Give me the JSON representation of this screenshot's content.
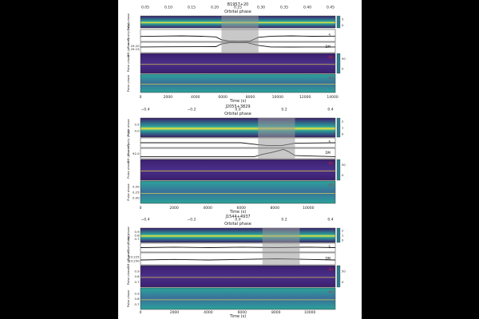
{
  "colors": {
    "background": "#000000",
    "paper": "#ffffff",
    "eclipse_shade": "#9a9a9a",
    "flux_line": "#111111",
    "s_line": "#cc2222",
    "heat_low": "#3b1f6e",
    "heat_mid": "#2e7f8f",
    "heat_high": "#f2e43a",
    "teal": "#2aa39a"
  },
  "chart_data": [
    {
      "type": "heatmap",
      "title": "B1957+20",
      "top_axis_label": "Orbital phase",
      "top_ticks": [
        "0.05",
        "0.10",
        "0.15",
        "0.20",
        "0.25",
        "0.30",
        "0.35",
        "0.40",
        "0.45"
      ],
      "x_ticks": [
        "0",
        "2000",
        "4000",
        "6000",
        "8000",
        "10000",
        "12000",
        "14000"
      ],
      "xlabel": "Time (s)",
      "xlim": [
        0,
        14200
      ],
      "eclipse": [
        5900,
        8600
      ],
      "panels": [
        {
          "name": "pulse-profile",
          "ylabel": "Pulse phase",
          "cbar": [
            "5",
            "0"
          ]
        },
        {
          "name": "flux",
          "ylabel": "Flux density (mJy)",
          "series": [
            {
              "x": [
                0,
                1500,
                3000,
                4500,
                5500,
                5900,
                6400,
                7200,
                8000,
                8600,
                9500,
                11000,
                12500,
                14200
              ],
              "y": [
                0.42,
                0.45,
                0.47,
                0.43,
                0.38,
                0.15,
                0.05,
                0.02,
                0.05,
                0.35,
                0.44,
                0.47,
                0.43,
                0.45
              ]
            }
          ],
          "marker": "S"
        },
        {
          "name": "dm",
          "ylabel": "DM (pc cm⁻³)",
          "yticks": [
            "29.20",
            "29.15"
          ],
          "series": [
            {
              "x": [
                0,
                2000,
                4000,
                5500,
                5900,
                6500,
                7800,
                8600,
                9500,
                11000,
                14200
              ],
              "y": [
                0.55,
                0.56,
                0.57,
                0.58,
                0.85,
                0.95,
                0.95,
                0.7,
                0.55,
                0.54,
                0.55
              ]
            }
          ],
          "marker": "DM"
        },
        {
          "name": "pulse-1",
          "ylabel": "Pulse phase",
          "cbar": [
            "50",
            "0"
          ],
          "tag": "(b)"
        },
        {
          "name": "pulse-2",
          "ylabel": "Pulse phase",
          "tag": "(c)"
        }
      ]
    },
    {
      "type": "heatmap",
      "title": "J2055+3829",
      "top_axis_label": "Orbital phase",
      "top_ticks": [
        "−0.4",
        "−0.2",
        "0.0",
        "0.2",
        "0.4"
      ],
      "x_ticks": [
        "0",
        "2000",
        "4000",
        "6000",
        "8000",
        "10000"
      ],
      "xlabel": "Time (s)",
      "xlim": [
        0,
        11600
      ],
      "eclipse": [
        7000,
        9200
      ],
      "panels": [
        {
          "name": "pulse-profile",
          "ylabel": "Pulse phase",
          "yticks": [
            "0.5",
            "0.0"
          ],
          "cbar": [
            "2",
            "1",
            "0"
          ]
        },
        {
          "name": "flux",
          "ylabel": "Flux density (mJy)",
          "series": [
            {
              "x": [
                0,
                3000,
                6000,
                7000,
                7600,
                8400,
                9200,
                11600
              ],
              "y": [
                0.5,
                0.5,
                0.5,
                0.3,
                0.2,
                0.2,
                0.45,
                0.5
              ]
            }
          ],
          "marker": "S"
        },
        {
          "name": "dm",
          "ylabel": "DM (pc cm⁻³)",
          "yticks": [
            "92.0"
          ],
          "series": [
            {
              "x": [
                0,
                4000,
                6800,
                7200,
                7800,
                8300,
                8500,
                8800,
                9200,
                11600
              ],
              "y": [
                0.2,
                0.2,
                0.2,
                0.4,
                0.6,
                0.8,
                0.9,
                0.7,
                0.3,
                0.2
              ]
            }
          ],
          "marker": "DM"
        },
        {
          "name": "pulse-1",
          "ylabel": "Pulse phase",
          "cbar": [
            "50",
            "0"
          ],
          "tag": "(b)"
        },
        {
          "name": "pulse-2",
          "ylabel": "Pulse phase",
          "yticks": [
            "0.50",
            "0.25",
            "0.00"
          ],
          "tag": "(c)"
        }
      ]
    },
    {
      "type": "heatmap",
      "title": "J1544+4937",
      "top_axis_label": "Orbital phase",
      "top_ticks": [
        "−0.4",
        "−0.2",
        "0.0",
        "0.2",
        "0.4"
      ],
      "x_ticks": [
        "0",
        "2000",
        "4000",
        "6000",
        "8000",
        "10000"
      ],
      "xlabel": "Time (s)",
      "xlim": [
        0,
        11500
      ],
      "eclipse": [
        7200,
        9400
      ],
      "panels": [
        {
          "name": "pulse-profile",
          "ylabel": "Pulse phase",
          "yticks": [
            "0.9",
            "0.8",
            "0.7"
          ],
          "cbar": [
            "2",
            "1",
            "0"
          ]
        },
        {
          "name": "flux",
          "ylabel": "Flux density (mJy)",
          "series": [
            {
              "x": [
                0,
                2000,
                4000,
                6000,
                8000,
                10000,
                11500
              ],
              "y": [
                0.5,
                0.55,
                0.5,
                0.55,
                0.5,
                0.55,
                0.5
              ]
            }
          ],
          "marker": "S"
        },
        {
          "name": "dm",
          "ylabel": "DM (pc cm⁻³)",
          "yticks": [
            "23.225",
            "23.250"
          ],
          "series": [
            {
              "x": [
                0,
                2000,
                4000,
                6000,
                8000,
                10000,
                11500
              ],
              "y": [
                0.4,
                0.45,
                0.4,
                0.45,
                0.5,
                0.45,
                0.4
              ]
            }
          ],
          "marker": "DM"
        },
        {
          "name": "pulse-1",
          "ylabel": "Pulse phase",
          "yticks": [
            "0.9",
            "0.8",
            "0.7"
          ],
          "cbar": [
            "50",
            "0"
          ],
          "tag": "(b)"
        },
        {
          "name": "pulse-2",
          "ylabel": "Pulse phase",
          "yticks": [
            "0.9",
            "0.8",
            "0.7"
          ],
          "tag": "(c)"
        }
      ]
    }
  ]
}
